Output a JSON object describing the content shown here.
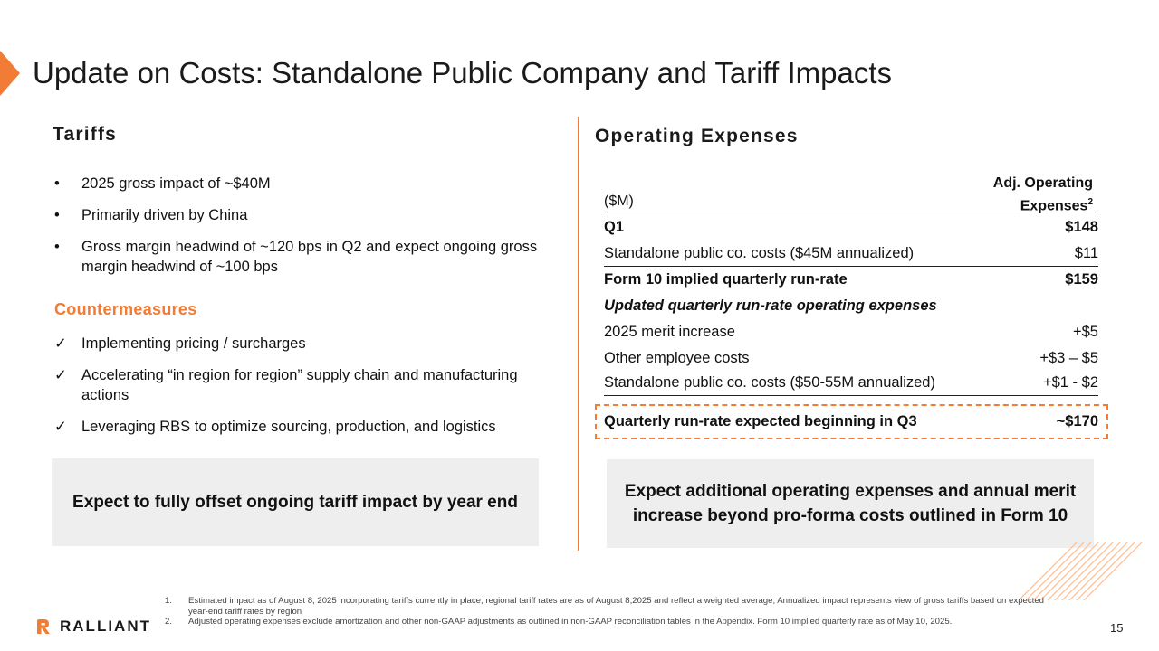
{
  "slide": {
    "title": "Update on Costs: Standalone Public Company and Tariff Impacts",
    "page_number": "15",
    "accent_color": "#f07c35"
  },
  "tariffs": {
    "heading": "Tariffs",
    "bullets": [
      "2025 gross impact of ~$40M",
      "Primarily driven by China",
      "Gross margin headwind of ~120 bps in Q2 and expect ongoing gross margin headwind of ~100 bps"
    ],
    "bullet_symbol": "•",
    "countermeasures_heading": "Countermeasures",
    "countermeasures": [
      "Implementing pricing / surcharges",
      "Accelerating “in region for region” supply chain and manufacturing actions",
      "Leveraging RBS to optimize sourcing, production, and logistics"
    ],
    "check_symbol": "✓",
    "callout": "Expect to fully offset ongoing tariff impact by year end"
  },
  "opex": {
    "heading": "Operating Expenses",
    "unit_label": "($M)",
    "column_header": "Adj. Operating Expenses",
    "column_header_sup": "2",
    "rows": [
      {
        "label": "Q1",
        "value": "$148"
      },
      {
        "label": "Standalone public co. costs ($45M annualized)",
        "value": "$11"
      },
      {
        "label": "Form 10 implied quarterly run-rate",
        "value": "$159"
      },
      {
        "label": "Updated quarterly run-rate operating expenses",
        "value": ""
      },
      {
        "label": "2025 merit increase",
        "value": "+$5"
      },
      {
        "label": "Other employee costs",
        "value": "+$3 – $5"
      },
      {
        "label": "Standalone public co. costs ($50-55M annualized)",
        "value": "+$1 - $2"
      }
    ],
    "highlight": {
      "label": "Quarterly run-rate expected beginning in Q3",
      "value": "~$170"
    },
    "callout": "Expect additional operating expenses and annual merit increase beyond pro-forma costs outlined in Form 10"
  },
  "footnotes": [
    {
      "num": "1.",
      "text": "Estimated impact as of August 8, 2025 incorporating tariffs currently in place; regional tariff rates are as of August 8,2025 and reflect a weighted average; Annualized impact represents view of gross tariffs based on expected year-end tariff rates by region"
    },
    {
      "num": "2.",
      "text": "Adjusted operating expenses exclude amortization and other non-GAAP adjustments as outlined in non-GAAP reconciliation tables in the Appendix. Form 10 implied quarterly rate as of May 10, 2025."
    }
  ],
  "logo": {
    "text": "RALLIANT",
    "icon": "ralliant-logo-icon"
  }
}
